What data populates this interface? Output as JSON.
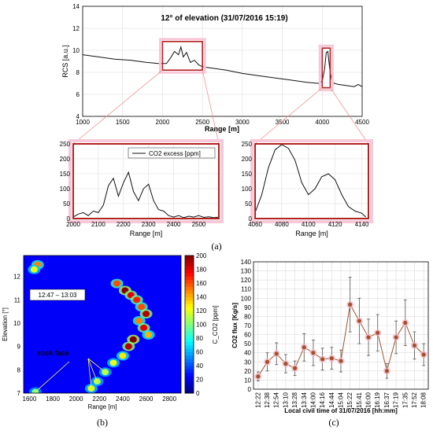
{
  "panel_labels": [
    "(a)",
    "(b)",
    "(c)"
  ],
  "chart_data": [
    {
      "type": "line",
      "id": "top",
      "title": "12° of elevation (31/07/2016 15:19)",
      "xlabel": "Range [m]",
      "ylabel": "RCS [a.u.]",
      "xlim": [
        1000,
        4500
      ],
      "ylim": [
        4,
        14
      ],
      "xticks": [
        1000,
        1500,
        2000,
        2500,
        3000,
        3500,
        4000,
        4500
      ],
      "yticks": [
        4,
        6,
        8,
        10,
        12,
        14
      ],
      "grid": true,
      "x": [
        1000,
        1200,
        1400,
        1600,
        1800,
        1950,
        2050,
        2100,
        2150,
        2200,
        2230,
        2260,
        2300,
        2350,
        2400,
        2450,
        2500,
        2600,
        2800,
        3000,
        3200,
        3400,
        3600,
        3800,
        3950,
        4000,
        4030,
        4050,
        4070,
        4085,
        4100,
        4120,
        4150,
        4200,
        4300,
        4400,
        4450,
        4500
      ],
      "y": [
        9.6,
        9.4,
        9.2,
        9.1,
        8.9,
        8.8,
        8.8,
        9.3,
        9.9,
        9.6,
        10.3,
        9.4,
        9.8,
        8.9,
        9.1,
        8.7,
        8.5,
        8.4,
        8.2,
        7.9,
        7.7,
        7.5,
        7.3,
        7.1,
        7.0,
        7.2,
        8.3,
        9.8,
        9.9,
        8.9,
        8.0,
        7.3,
        7.0,
        6.9,
        6.8,
        6.7,
        6.9,
        6.7
      ],
      "highlight_ranges": [
        [
          2000,
          2500,
          8.2,
          10.8
        ],
        [
          4000,
          4100,
          6.6,
          10.2
        ]
      ]
    },
    {
      "type": "line",
      "id": "zoom-left",
      "legend": "CO2 excess [ppm]",
      "xlabel": "Range [m]",
      "xlim": [
        2000,
        2580
      ],
      "ylim": [
        0,
        250
      ],
      "xticks": [
        2000,
        2100,
        2200,
        2300,
        2400,
        2500
      ],
      "yticks": [
        0,
        50,
        100,
        150,
        200,
        250
      ],
      "grid": true,
      "x": [
        2000,
        2020,
        2040,
        2060,
        2080,
        2100,
        2120,
        2140,
        2160,
        2180,
        2200,
        2220,
        2240,
        2260,
        2280,
        2300,
        2320,
        2340,
        2360,
        2380,
        2400,
        2420,
        2440,
        2460,
        2480,
        2500,
        2520,
        2540,
        2560,
        2580
      ],
      "y": [
        5,
        15,
        20,
        10,
        25,
        20,
        45,
        110,
        135,
        75,
        120,
        155,
        90,
        60,
        100,
        115,
        60,
        30,
        25,
        10,
        5,
        10,
        3,
        8,
        5,
        10,
        4,
        6,
        3,
        5
      ]
    },
    {
      "type": "line",
      "id": "zoom-right",
      "xlabel": "Range [m]",
      "xlim": [
        4060,
        4145
      ],
      "ylim": [
        0,
        250
      ],
      "xticks": [
        4060,
        4080,
        4100,
        4120,
        4140
      ],
      "yticks": [
        0,
        50,
        100,
        150,
        200,
        250
      ],
      "grid": true,
      "x": [
        4060,
        4065,
        4070,
        4075,
        4080,
        4085,
        4090,
        4095,
        4100,
        4105,
        4110,
        4115,
        4120,
        4125,
        4130,
        4135,
        4140,
        4143
      ],
      "y": [
        20,
        80,
        170,
        230,
        248,
        235,
        195,
        120,
        80,
        100,
        140,
        150,
        130,
        80,
        40,
        25,
        18,
        5
      ]
    },
    {
      "type": "heatmap",
      "id": "heatmap",
      "xlabel": "Range [m]",
      "ylabel": "Elevation [°]",
      "clabel": "C_CO2 [ppm]",
      "time_label": "12:47 – 13:03",
      "annotation": "rock face",
      "xlim": [
        1550,
        2900
      ],
      "ylim": [
        7,
        12.9
      ],
      "xticks": [
        1600,
        1800,
        2000,
        2200,
        2400,
        2600,
        2800
      ],
      "yticks": [
        7,
        8,
        9,
        10,
        11,
        12
      ],
      "clim": [
        0,
        200
      ],
      "cticks": [
        0,
        20,
        40,
        60,
        80,
        100,
        120,
        140,
        160,
        180,
        200
      ],
      "blobs": [
        {
          "x": 1670,
          "y": 12.5,
          "v": 150
        },
        {
          "x": 1640,
          "y": 12.3,
          "v": 120
        },
        {
          "x": 2350,
          "y": 11.7,
          "v": 160
        },
        {
          "x": 2420,
          "y": 11.4,
          "v": 200
        },
        {
          "x": 2470,
          "y": 11.2,
          "v": 180
        },
        {
          "x": 2520,
          "y": 11.0,
          "v": 170
        },
        {
          "x": 2560,
          "y": 10.7,
          "v": 160
        },
        {
          "x": 2600,
          "y": 10.4,
          "v": 190
        },
        {
          "x": 2540,
          "y": 10.1,
          "v": 150
        },
        {
          "x": 2580,
          "y": 9.8,
          "v": 180
        },
        {
          "x": 2620,
          "y": 9.5,
          "v": 140
        },
        {
          "x": 2490,
          "y": 9.3,
          "v": 200
        },
        {
          "x": 2450,
          "y": 9.0,
          "v": 190
        },
        {
          "x": 2400,
          "y": 8.6,
          "v": 130
        },
        {
          "x": 2320,
          "y": 8.3,
          "v": 120
        },
        {
          "x": 2250,
          "y": 7.9,
          "v": 110
        },
        {
          "x": 2180,
          "y": 7.5,
          "v": 110
        },
        {
          "x": 2130,
          "y": 7.2,
          "v": 120
        },
        {
          "x": 1650,
          "y": 7.05,
          "v": 100
        }
      ]
    },
    {
      "type": "line",
      "id": "flux",
      "xlabel": "Local civil time of 31/07/2016 [hh:mm]",
      "ylabel": "CO2 flux [Kg/s]",
      "ylim": [
        0,
        140
      ],
      "yticks": [
        0,
        10,
        20,
        30,
        40,
        50,
        60,
        70,
        80,
        90,
        100,
        110,
        120,
        130,
        140
      ],
      "grid": true,
      "categories": [
        "12:22",
        "12:38",
        "12:54",
        "13:10",
        "13:28",
        "13:34",
        "14:00",
        "14:16",
        "14:44",
        "15:04",
        "15:22",
        "15:41",
        "16:00",
        "16:19",
        "16:37",
        "17:19",
        "17:35",
        "17:52",
        "18:08"
      ],
      "values": [
        14,
        30,
        39,
        28,
        23,
        46,
        40,
        33,
        34,
        31,
        93,
        75,
        57,
        62,
        20,
        57,
        73,
        48,
        38
      ],
      "error": [
        5,
        10,
        12,
        10,
        8,
        15,
        14,
        12,
        12,
        12,
        30,
        25,
        20,
        20,
        8,
        18,
        25,
        15,
        12
      ]
    }
  ]
}
